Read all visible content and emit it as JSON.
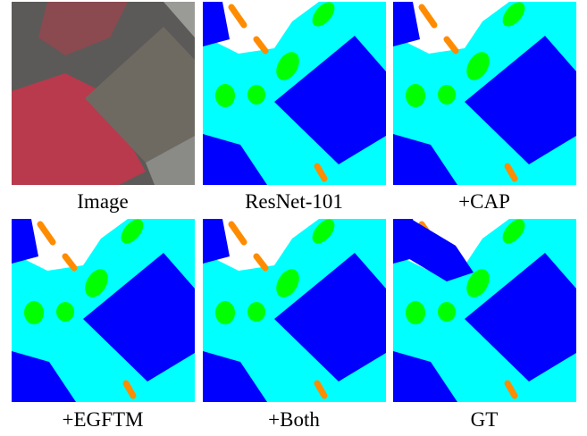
{
  "panels": [
    {
      "caption": "Image"
    },
    {
      "caption": "ResNet-101"
    },
    {
      "caption": "+CAP"
    },
    {
      "caption": "+EGFTM"
    },
    {
      "caption": "+Both"
    },
    {
      "caption": "GT"
    }
  ]
}
